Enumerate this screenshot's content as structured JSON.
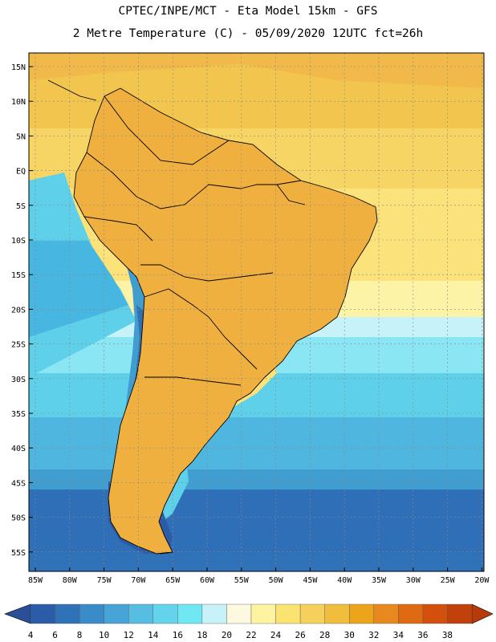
{
  "header": {
    "line1": "CPTEC/INPE/MCT -  Eta Model 15km - GFS",
    "line2": "2 Metre Temperature (C) - 05/09/2020 12UTC fct=26h"
  },
  "map": {
    "lat_labels": [
      "15N",
      "10N",
      "5N",
      "EQ",
      "5S",
      "10S",
      "15S",
      "20S",
      "25S",
      "30S",
      "35S",
      "40S",
      "45S",
      "50S",
      "55S"
    ],
    "lon_labels": [
      "85W",
      "80W",
      "75W",
      "70W",
      "65W",
      "60W",
      "55W",
      "50W",
      "45W",
      "40W",
      "35W",
      "30W",
      "25W",
      "20W"
    ],
    "grid": "dotted"
  },
  "colorbar": {
    "labels": [
      "4",
      "6",
      "8",
      "10",
      "12",
      "14",
      "16",
      "18",
      "20",
      "22",
      "24",
      "26",
      "28",
      "30",
      "32",
      "34",
      "36",
      "38"
    ],
    "colors": [
      "#2b5ca8",
      "#2f72b8",
      "#3a8cc8",
      "#47a4d6",
      "#57bde2",
      "#64d3ec",
      "#70e8f4",
      "#c8f2fa",
      "#fdf9e0",
      "#fdf3a0",
      "#fbe372",
      "#f5d05a",
      "#f0bd3c",
      "#eca51a",
      "#e7891e",
      "#e06a12",
      "#d2500c",
      "#c2400a"
    ],
    "under_color": "#2a4f96",
    "over_color": "#b73a08"
  }
}
